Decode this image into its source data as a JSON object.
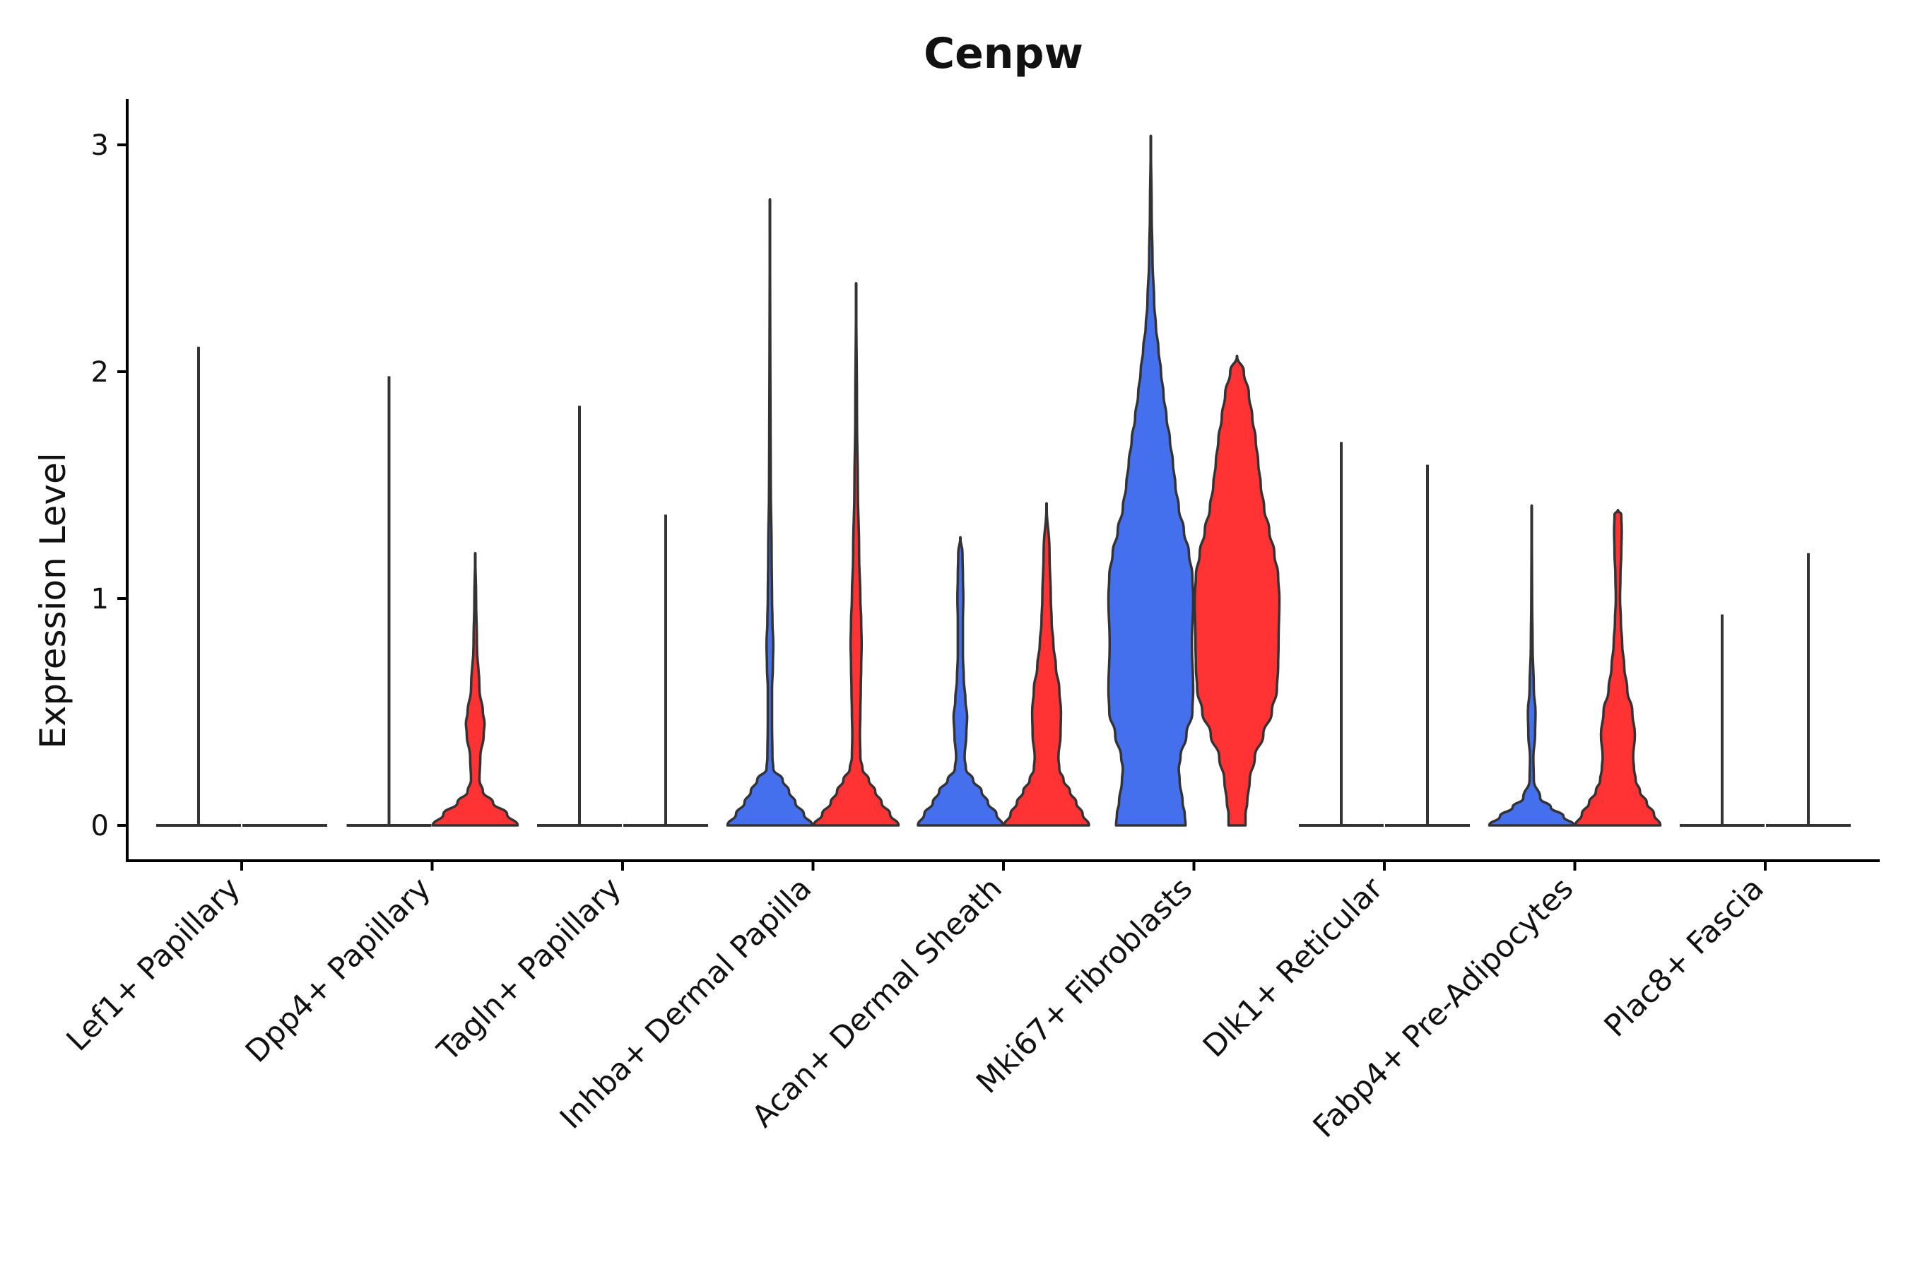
{
  "chart_data": {
    "type": "violin",
    "title": "Cenpw",
    "xlabel": "",
    "ylabel": "Expression Level",
    "ylim": [
      -0.15,
      3.2
    ],
    "yticks": [
      0,
      1,
      2,
      3
    ],
    "legend": "none",
    "grid": false,
    "colors": {
      "group1": "#4470EE",
      "group2": "#FF3333",
      "outline": "#333333"
    },
    "categories": [
      "Lef1+ Papillary",
      "Dpp4+ Papillary",
      "Tagln+ Papillary",
      "Inhba+ Dermal Papilla",
      "Acan+ Dermal Sheath",
      "Mki67+ Fibroblasts",
      "Dlk1+ Reticular",
      "Fabp4+ Pre-Adipocytes",
      "Plac8+ Fascia"
    ],
    "series": [
      {
        "name": "group1",
        "color": "#4470EE",
        "violins": [
          {
            "max": 2.11,
            "profile": [
              [
                0,
                1.0
              ],
              [
                0.01,
                0.0
              ]
            ]
          },
          {
            "max": 1.98,
            "profile": [
              [
                0,
                1.0
              ],
              [
                0.01,
                0.0
              ]
            ]
          },
          {
            "max": 1.85,
            "profile": [
              [
                0,
                1.0
              ],
              [
                0.01,
                0.0
              ]
            ]
          },
          {
            "max": 2.76,
            "profile": [
              [
                0,
                1.0
              ],
              [
                0.05,
                0.8
              ],
              [
                0.1,
                0.6
              ],
              [
                0.15,
                0.45
              ],
              [
                0.2,
                0.3
              ],
              [
                0.25,
                0.08
              ],
              [
                0.3,
                0.06
              ],
              [
                0.45,
                0.05
              ],
              [
                0.6,
                0.05
              ],
              [
                0.7,
                0.07
              ],
              [
                0.8,
                0.08
              ],
              [
                0.9,
                0.06
              ],
              [
                1.0,
                0.05
              ],
              [
                1.2,
                0.04
              ],
              [
                1.5,
                0.02
              ],
              [
                2.0,
                0.01
              ],
              [
                2.76,
                0.0
              ]
            ]
          },
          {
            "max": 1.27,
            "profile": [
              [
                0,
                1.0
              ],
              [
                0.05,
                0.85
              ],
              [
                0.1,
                0.65
              ],
              [
                0.15,
                0.5
              ],
              [
                0.2,
                0.3
              ],
              [
                0.25,
                0.13
              ],
              [
                0.3,
                0.1
              ],
              [
                0.4,
                0.14
              ],
              [
                0.48,
                0.16
              ],
              [
                0.55,
                0.12
              ],
              [
                0.65,
                0.08
              ],
              [
                0.75,
                0.06
              ],
              [
                0.9,
                0.06
              ],
              [
                1.0,
                0.07
              ],
              [
                1.1,
                0.06
              ],
              [
                1.2,
                0.05
              ],
              [
                1.27,
                0.0
              ]
            ]
          },
          {
            "max": 3.04,
            "profile": [
              [
                0,
                0.82
              ],
              [
                0.05,
                0.8
              ],
              [
                0.1,
                0.75
              ],
              [
                0.2,
                0.68
              ],
              [
                0.25,
                0.66
              ],
              [
                0.3,
                0.7
              ],
              [
                0.4,
                0.84
              ],
              [
                0.5,
                0.98
              ],
              [
                0.6,
                1.0
              ],
              [
                0.8,
                0.97
              ],
              [
                1.0,
                1.0
              ],
              [
                1.1,
                0.98
              ],
              [
                1.2,
                0.9
              ],
              [
                1.3,
                0.78
              ],
              [
                1.4,
                0.66
              ],
              [
                1.5,
                0.58
              ],
              [
                1.6,
                0.52
              ],
              [
                1.7,
                0.45
              ],
              [
                1.8,
                0.37
              ],
              [
                1.9,
                0.3
              ],
              [
                2.0,
                0.24
              ],
              [
                2.1,
                0.18
              ],
              [
                2.2,
                0.12
              ],
              [
                2.3,
                0.08
              ],
              [
                2.5,
                0.04
              ],
              [
                2.7,
                0.02
              ],
              [
                3.04,
                0.0
              ]
            ]
          },
          {
            "max": 1.69,
            "profile": [
              [
                0,
                1.0
              ],
              [
                0.01,
                0.0
              ]
            ]
          },
          {
            "max": 1.41,
            "profile": [
              [
                0,
                1.0
              ],
              [
                0.04,
                0.75
              ],
              [
                0.08,
                0.45
              ],
              [
                0.12,
                0.2
              ],
              [
                0.2,
                0.05
              ],
              [
                0.3,
                0.04
              ],
              [
                0.4,
                0.08
              ],
              [
                0.5,
                0.09
              ],
              [
                0.6,
                0.05
              ],
              [
                0.8,
                0.02
              ],
              [
                1.0,
                0.01
              ],
              [
                1.41,
                0.0
              ]
            ]
          },
          {
            "max": 0.93,
            "profile": [
              [
                0,
                1.0
              ],
              [
                0.01,
                0.0
              ]
            ]
          }
        ]
      },
      {
        "name": "group2",
        "color": "#FF3333",
        "violins": [
          {
            "max": 0.0,
            "profile": [
              [
                0,
                1.0
              ],
              [
                0.01,
                0.0
              ]
            ]
          },
          {
            "max": 1.2,
            "profile": [
              [
                0,
                1.0
              ],
              [
                0.05,
                0.75
              ],
              [
                0.1,
                0.42
              ],
              [
                0.15,
                0.18
              ],
              [
                0.2,
                0.1
              ],
              [
                0.3,
                0.12
              ],
              [
                0.4,
                0.2
              ],
              [
                0.45,
                0.22
              ],
              [
                0.5,
                0.18
              ],
              [
                0.6,
                0.1
              ],
              [
                0.8,
                0.04
              ],
              [
                1.0,
                0.02
              ],
              [
                1.2,
                0.0
              ]
            ]
          },
          {
            "max": 1.37,
            "profile": [
              [
                0,
                1.0
              ],
              [
                0.01,
                0.0
              ]
            ]
          },
          {
            "max": 2.39,
            "profile": [
              [
                0,
                1.0
              ],
              [
                0.05,
                0.8
              ],
              [
                0.1,
                0.6
              ],
              [
                0.15,
                0.45
              ],
              [
                0.2,
                0.3
              ],
              [
                0.25,
                0.15
              ],
              [
                0.3,
                0.1
              ],
              [
                0.4,
                0.09
              ],
              [
                0.5,
                0.1
              ],
              [
                0.6,
                0.11
              ],
              [
                0.7,
                0.12
              ],
              [
                0.8,
                0.13
              ],
              [
                0.9,
                0.12
              ],
              [
                1.0,
                0.1
              ],
              [
                1.2,
                0.07
              ],
              [
                1.5,
                0.04
              ],
              [
                1.8,
                0.02
              ],
              [
                2.39,
                0.0
              ]
            ]
          },
          {
            "max": 1.42,
            "profile": [
              [
                0,
                1.0
              ],
              [
                0.05,
                0.85
              ],
              [
                0.1,
                0.7
              ],
              [
                0.15,
                0.55
              ],
              [
                0.2,
                0.4
              ],
              [
                0.25,
                0.3
              ],
              [
                0.3,
                0.28
              ],
              [
                0.4,
                0.33
              ],
              [
                0.5,
                0.34
              ],
              [
                0.6,
                0.3
              ],
              [
                0.7,
                0.22
              ],
              [
                0.8,
                0.16
              ],
              [
                0.9,
                0.12
              ],
              [
                1.0,
                0.1
              ],
              [
                1.2,
                0.07
              ],
              [
                1.42,
                0.0
              ]
            ]
          },
          {
            "max": 2.07,
            "profile": [
              [
                0,
                0.2
              ],
              [
                0.05,
                0.2
              ],
              [
                0.1,
                0.24
              ],
              [
                0.2,
                0.3
              ],
              [
                0.3,
                0.42
              ],
              [
                0.4,
                0.62
              ],
              [
                0.5,
                0.82
              ],
              [
                0.6,
                0.94
              ],
              [
                0.7,
                0.97
              ],
              [
                0.8,
                0.98
              ],
              [
                1.0,
                1.0
              ],
              [
                1.1,
                0.97
              ],
              [
                1.2,
                0.88
              ],
              [
                1.3,
                0.76
              ],
              [
                1.4,
                0.64
              ],
              [
                1.5,
                0.56
              ],
              [
                1.6,
                0.5
              ],
              [
                1.7,
                0.44
              ],
              [
                1.8,
                0.36
              ],
              [
                1.9,
                0.28
              ],
              [
                2.0,
                0.16
              ],
              [
                2.07,
                0.0
              ]
            ]
          },
          {
            "max": 1.59,
            "profile": [
              [
                0,
                1.0
              ],
              [
                0.01,
                0.0
              ]
            ]
          },
          {
            "max": 1.39,
            "profile": [
              [
                0,
                1.0
              ],
              [
                0.05,
                0.85
              ],
              [
                0.1,
                0.68
              ],
              [
                0.15,
                0.52
              ],
              [
                0.2,
                0.42
              ],
              [
                0.25,
                0.38
              ],
              [
                0.3,
                0.36
              ],
              [
                0.4,
                0.4
              ],
              [
                0.5,
                0.34
              ],
              [
                0.6,
                0.22
              ],
              [
                0.7,
                0.15
              ],
              [
                0.8,
                0.1
              ],
              [
                0.9,
                0.07
              ],
              [
                1.0,
                0.05
              ],
              [
                1.1,
                0.06
              ],
              [
                1.2,
                0.08
              ],
              [
                1.3,
                0.09
              ],
              [
                1.37,
                0.08
              ],
              [
                1.39,
                0.0
              ]
            ]
          },
          {
            "max": 1.2,
            "profile": [
              [
                0,
                1.0
              ],
              [
                0.01,
                0.0
              ]
            ]
          }
        ]
      }
    ]
  }
}
